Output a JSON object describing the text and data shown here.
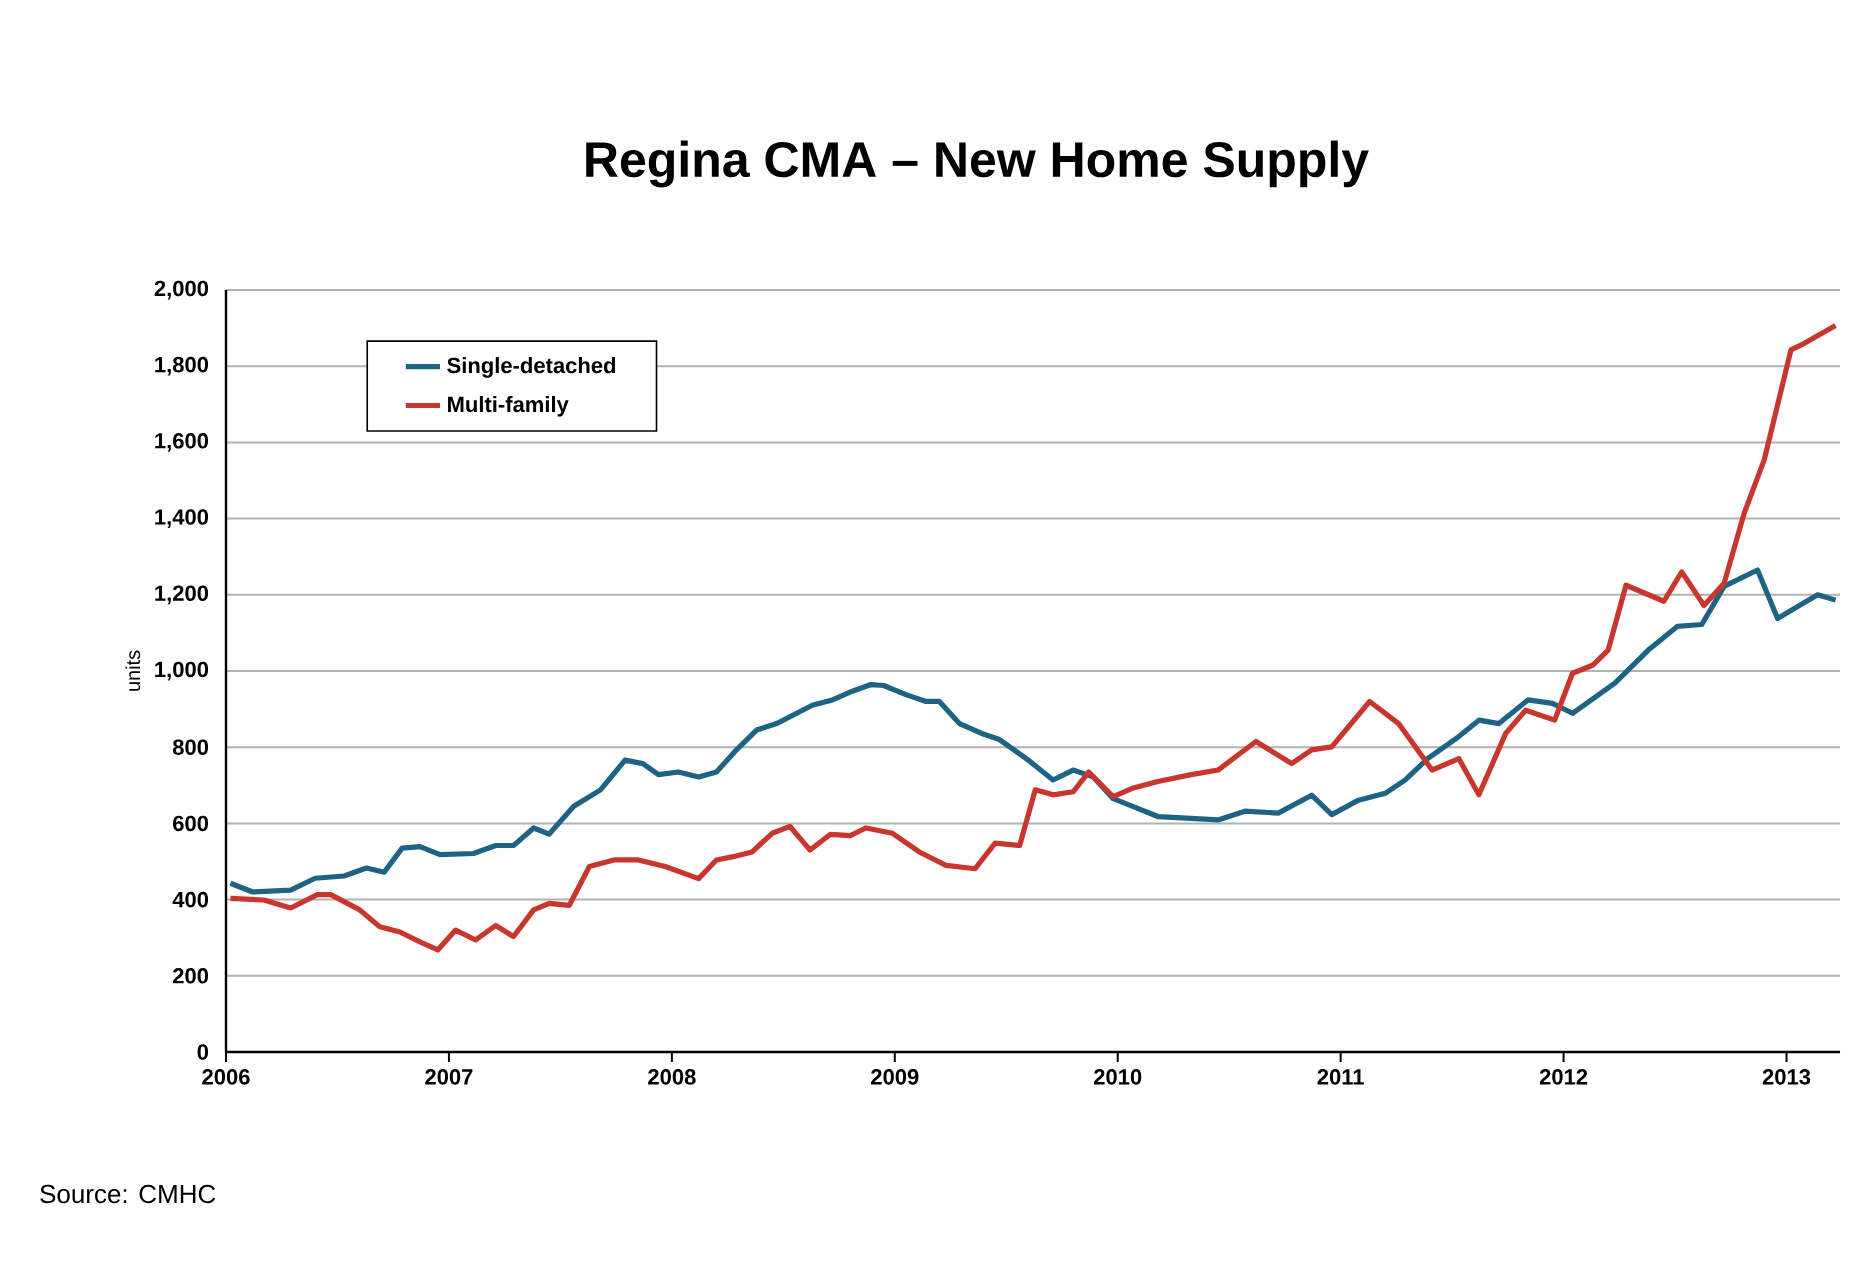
{
  "chart_data": {
    "type": "line",
    "title": "Regina CMA – New Home Supply",
    "ylabel": "units",
    "xlim": [
      2006,
      2013.24
    ],
    "xticks": [
      2006,
      2007,
      2008,
      2009,
      2010,
      2011,
      2012,
      2013
    ],
    "ylim": [
      0,
      2000
    ],
    "yticks": [
      0,
      200,
      400,
      600,
      800,
      {
        "value": 1000,
        "label": "1,000"
      },
      {
        "value": 1200,
        "label": "1,200"
      },
      {
        "value": 1400,
        "label": "1,400"
      },
      {
        "value": 1600,
        "label": "1,600"
      },
      {
        "value": 1800,
        "label": "1,800"
      },
      {
        "value": 2000,
        "label": "2,000"
      }
    ],
    "grid": "y",
    "legend": "top left",
    "line_style": "solid",
    "annotations": [
      "Source: CMHC"
    ],
    "series": [
      {
        "name": "Single-detached",
        "color": "#1f6384",
        "x": [
          2006.02,
          2006.12,
          2006.29,
          2006.4,
          2006.53,
          2006.63,
          2006.71,
          2006.79,
          2006.87,
          2006.96,
          2007.11,
          2007.21,
          2007.29,
          2007.38,
          2007.45,
          2007.56,
          2007.68,
          2007.79,
          2007.87,
          2007.94,
          2008.03,
          2008.12,
          2008.2,
          2008.29,
          2008.38,
          2008.47,
          2008.56,
          2008.63,
          2008.72,
          2008.81,
          2008.89,
          2008.95,
          2009.05,
          2009.14,
          2009.2,
          2009.29,
          2009.39,
          2009.47,
          2009.59,
          2009.71,
          2009.8,
          2009.89,
          2009.98,
          2010.07,
          2010.18,
          2010.33,
          2010.45,
          2010.57,
          2010.72,
          2010.87,
          2010.96,
          2011.08,
          2011.2,
          2011.29,
          2011.39,
          2011.53,
          2011.62,
          2011.71,
          2011.84,
          2011.95,
          2012.04,
          2012.23,
          2012.38,
          2012.51,
          2012.62,
          2012.72,
          2012.87,
          2012.96,
          2013.05,
          2013.14,
          2013.22
        ],
        "values": [
          443,
          420,
          425,
          456,
          462,
          483,
          472,
          535,
          539,
          518,
          521,
          542,
          542,
          588,
          572,
          645,
          688,
          766,
          757,
          728,
          735,
          722,
          735,
          793,
          845,
          862,
          889,
          910,
          924,
          947,
          964,
          962,
          938,
          920,
          920,
          862,
          836,
          820,
          770,
          714,
          740,
          722,
          665,
          644,
          618,
          613,
          609,
          632,
          627,
          674,
          623,
          661,
          679,
          714,
          770,
          828,
          871,
          862,
          924,
          915,
          889,
          968,
          1055,
          1117,
          1122,
          1222,
          1265,
          1138,
          1169,
          1200,
          1186
        ]
      },
      {
        "name": "Multi-family",
        "color": "#c8372d",
        "x": [
          2006.02,
          2006.17,
          2006.29,
          2006.41,
          2006.47,
          2006.6,
          2006.69,
          2006.78,
          2006.87,
          2006.95,
          2007.03,
          2007.12,
          2007.21,
          2007.29,
          2007.38,
          2007.45,
          2007.54,
          2007.63,
          2007.74,
          2007.85,
          2007.97,
          2008.12,
          2008.2,
          2008.27,
          2008.36,
          2008.45,
          2008.53,
          2008.62,
          2008.71,
          2008.8,
          2008.87,
          2008.99,
          2009.11,
          2009.23,
          2009.36,
          2009.45,
          2009.56,
          2009.63,
          2009.71,
          2009.8,
          2009.87,
          2009.98,
          2010.07,
          2010.18,
          2010.33,
          2010.45,
          2010.62,
          2010.78,
          2010.87,
          2010.96,
          2011.13,
          2011.26,
          2011.41,
          2011.53,
          2011.62,
          2011.74,
          2011.83,
          2011.96,
          2012.04,
          2012.13,
          2012.2,
          2012.28,
          2012.45,
          2012.53,
          2012.63,
          2012.72,
          2012.81,
          2012.9,
          2013.02,
          2013.08,
          2013.22
        ],
        "values": [
          403,
          399,
          378,
          413,
          413,
          373,
          329,
          315,
          289,
          268,
          320,
          294,
          332,
          303,
          373,
          390,
          385,
          487,
          504,
          504,
          487,
          455,
          504,
          512,
          525,
          574,
          592,
          530,
          571,
          568,
          588,
          574,
          525,
          490,
          481,
          548,
          542,
          688,
          675,
          683,
          735,
          670,
          693,
          710,
          728,
          740,
          815,
          757,
          793,
          801,
          920,
          862,
          740,
          770,
          675,
          836,
          897,
          871,
          994,
          1015,
          1055,
          1225,
          1183,
          1260,
          1172,
          1230,
          1414,
          1554,
          1843,
          1860,
          1907
        ]
      }
    ]
  }
}
